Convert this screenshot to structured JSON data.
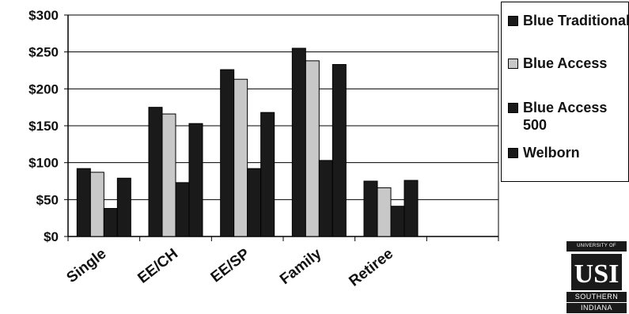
{
  "chart_data": {
    "type": "bar",
    "categories": [
      "Single",
      "EE/CH",
      "EE/SP",
      "Family",
      "Retiree"
    ],
    "series": [
      {
        "name": "Blue Traditional",
        "values": [
          92,
          175,
          226,
          255,
          75
        ],
        "color": "#1a1a1a"
      },
      {
        "name": "Blue Access",
        "values": [
          87,
          166,
          213,
          238,
          66
        ],
        "color": "#c8c8c8"
      },
      {
        "name": "Blue Access 500",
        "values": [
          38,
          73,
          92,
          103,
          41
        ],
        "color": "#1a1a1a"
      },
      {
        "name": "Welborn",
        "values": [
          79,
          153,
          168,
          233,
          76
        ],
        "color": "#1a1a1a"
      }
    ],
    "y_ticks": [
      "$0",
      "$50",
      "$100",
      "$150",
      "$200",
      "$250",
      "$300"
    ],
    "ylim": [
      0,
      300
    ],
    "grid": true,
    "legend_position": "right",
    "title": "",
    "xlabel": "",
    "ylabel": ""
  },
  "logo": {
    "top_text": "UNIVERSITY OF",
    "mark_text": "USI",
    "bottom_line1": "SOUTHERN",
    "bottom_line2": "INDIANA"
  }
}
